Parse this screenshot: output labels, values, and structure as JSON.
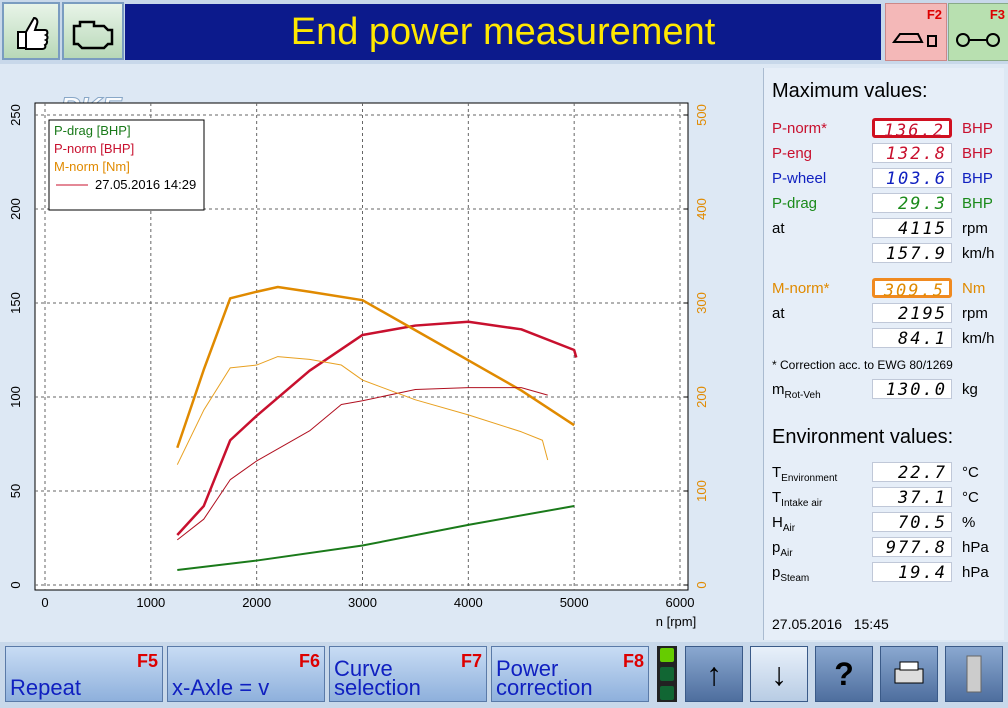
{
  "header": {
    "logo": "PKE",
    "title": "End power measurement",
    "buttons": [
      {
        "key": "F2"
      },
      {
        "key": "F3"
      }
    ]
  },
  "chart_data": {
    "type": "line",
    "x_label": "n [rpm]",
    "xlim": [
      0,
      6000
    ],
    "xticks": [
      0,
      1000,
      2000,
      3000,
      4000,
      5000,
      6000
    ],
    "ylim": [
      0,
      250
    ],
    "yticks": [
      0,
      50,
      100,
      150,
      200,
      250
    ],
    "y2lim": [
      0,
      500
    ],
    "y2ticks": [
      0,
      100,
      200,
      300,
      400,
      500
    ],
    "y2_color": "#e08a00",
    "grid": true,
    "legend_caption": "27.05.2016 14:29",
    "series": [
      {
        "name": "P-drag [BHP]",
        "color": "#1a7a1a",
        "line_width": 2,
        "x": [
          1250,
          2000,
          3000,
          4000,
          5000
        ],
        "values": [
          8,
          13,
          21,
          32,
          42
        ]
      },
      {
        "name": "P-norm [BHP]",
        "color": "#c8102e",
        "line_width": 2.5,
        "x": [
          1250,
          1500,
          1750,
          2000,
          2500,
          3000,
          3500,
          4000,
          4500,
          5000,
          5020
        ],
        "values": [
          26.6,
          42,
          77,
          90,
          114,
          133,
          138,
          140,
          136,
          125,
          121
        ]
      },
      {
        "name": "M-norm [Nm]",
        "color": "#e08a00",
        "line_width": 2.5,
        "axis": "y2",
        "x": [
          1250,
          1500,
          1750,
          2000,
          2200,
          2500,
          3000,
          3500,
          4000,
          4500,
          5000
        ],
        "values": [
          146,
          229,
          305,
          312,
          317,
          312,
          303,
          271,
          239,
          207,
          170
        ]
      },
      {
        "color": "#b01020",
        "line_width": 1,
        "x": [
          1250,
          1500,
          1750,
          2000,
          2500,
          2800,
          3000,
          3500,
          4000,
          4500,
          4750
        ],
        "values": [
          24,
          35,
          56,
          66,
          82,
          96,
          98,
          104,
          105,
          105,
          101
        ]
      },
      {
        "color": "#e8a020",
        "line_width": 1,
        "axis": "y2",
        "x": [
          1250,
          1500,
          1750,
          2000,
          2200,
          2500,
          2800,
          3000,
          3500,
          4000,
          4500,
          4700,
          4750
        ],
        "values": [
          128,
          186,
          231,
          234,
          243,
          240,
          234,
          218,
          197,
          181,
          163,
          154,
          133
        ]
      }
    ]
  },
  "panel": {
    "max_heading": "Maximum values:",
    "max_rows": [
      {
        "label": "P-norm*",
        "value": "136.2",
        "unit": "BHP"
      },
      {
        "label": "P-eng",
        "value": "132.8",
        "unit": "BHP"
      },
      {
        "label": "P-wheel",
        "value": "103.6",
        "unit": "BHP"
      },
      {
        "label": "P-drag",
        "value": "29.3",
        "unit": "BHP"
      },
      {
        "label": "at",
        "value": "4115",
        "unit": "rpm"
      },
      {
        "value": "157.9",
        "unit": "km/h"
      },
      {
        "label": "M-norm*",
        "value": "309.5",
        "unit": "Nm"
      },
      {
        "label": "at",
        "value": "2195",
        "unit": "rpm"
      },
      {
        "value": "84.1",
        "unit": "km/h"
      }
    ],
    "note": "* Correction acc. to EWG 80/1269",
    "mass": {
      "main": "m",
      "sub": "Rot-Veh",
      "value": "130.0",
      "unit": "kg"
    },
    "env_heading": "Environment values:",
    "env_rows": [
      {
        "main": "T",
        "sub": "Environment",
        "value": "22.7",
        "unit": "°C"
      },
      {
        "main": "T",
        "sub": "Intake air",
        "value": "37.1",
        "unit": "°C"
      },
      {
        "main": "H",
        "sub": "Air",
        "value": "70.5",
        "unit": "%"
      },
      {
        "main": "p",
        "sub": "Air",
        "value": "977.8",
        "unit": "hPa"
      },
      {
        "main": "p",
        "sub": "Steam",
        "value": "19.4",
        "unit": "hPa"
      }
    ],
    "timestamp": "27.05.2016   15:45"
  },
  "footer": {
    "buttons": [
      {
        "label": "Repeat",
        "key": "F5"
      },
      {
        "label": "x-Axle = v",
        "key": "F6"
      },
      {
        "label": "Curve selection",
        "key": "F7"
      },
      {
        "label": "Power correction",
        "key": "F8"
      }
    ],
    "help": "?"
  }
}
